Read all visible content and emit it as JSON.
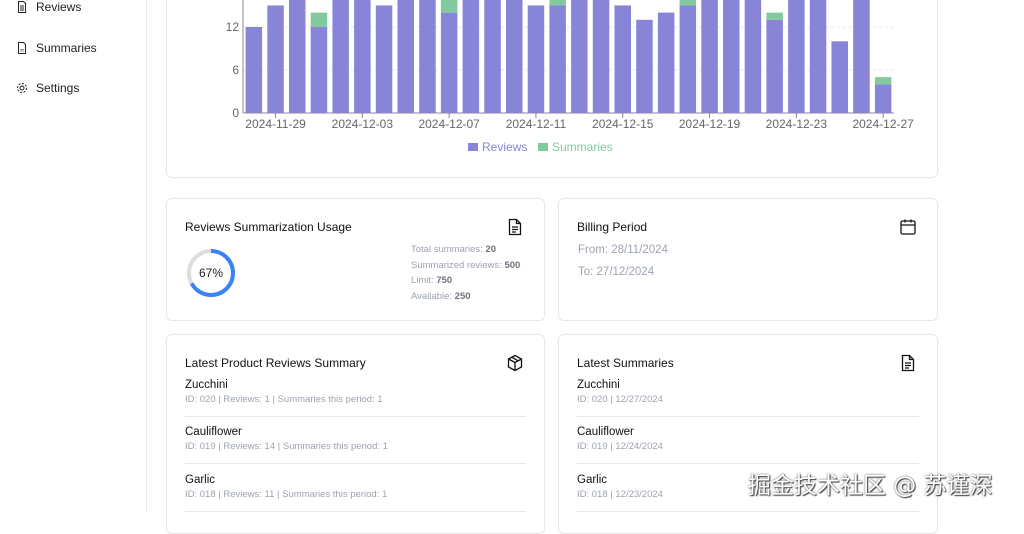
{
  "sidebar": {
    "items": [
      {
        "label": "Reviews",
        "icon": "file-text-icon"
      },
      {
        "label": "Summaries",
        "icon": "file-icon"
      },
      {
        "label": "Settings",
        "icon": "gear-icon"
      }
    ]
  },
  "chart_data": {
    "type": "bar",
    "stacked": true,
    "x": [
      "2024-11-28",
      "2024-11-29",
      "2024-11-30",
      "2024-12-01",
      "2024-12-02",
      "2024-12-03",
      "2024-12-04",
      "2024-12-05",
      "2024-12-06",
      "2024-12-07",
      "2024-12-08",
      "2024-12-09",
      "2024-12-10",
      "2024-12-11",
      "2024-12-12",
      "2024-12-13",
      "2024-12-14",
      "2024-12-15",
      "2024-12-16",
      "2024-12-17",
      "2024-12-18",
      "2024-12-19",
      "2024-12-20",
      "2024-12-21",
      "2024-12-22",
      "2024-12-23",
      "2024-12-24",
      "2024-12-25",
      "2024-12-26",
      "2024-12-27"
    ],
    "tick_labels": [
      "2024-11-29",
      "2024-12-03",
      "2024-12-07",
      "2024-12-11",
      "2024-12-15",
      "2024-12-19",
      "2024-12-23",
      "2024-12-27"
    ],
    "y_ticks": [
      "0",
      "6",
      "12"
    ],
    "series": [
      {
        "name": "Reviews",
        "color": "#8884d8",
        "values": [
          12,
          15,
          17,
          12,
          17,
          17,
          15,
          17,
          17,
          14,
          17,
          17,
          17,
          15,
          15,
          17,
          17,
          15,
          13,
          14,
          15,
          17,
          17,
          17,
          13,
          17,
          17,
          10,
          17,
          4
        ]
      },
      {
        "name": "Summaries",
        "color": "#82ca9d",
        "values": [
          0,
          0,
          0,
          2,
          0,
          0,
          0,
          0,
          0,
          3,
          0,
          0,
          0,
          0,
          1,
          0,
          0,
          0,
          0,
          0,
          2,
          0,
          0,
          0,
          1,
          0,
          0,
          0,
          0,
          1
        ]
      }
    ],
    "ylim": [
      0,
      18
    ],
    "grid": true,
    "legend": "bottom"
  },
  "usage": {
    "title": "Reviews Summarization Usage",
    "percent_label": "67%",
    "percent": 67,
    "total_label": "Total summaries:",
    "total": "20",
    "summarized_label": "Summarized reviews:",
    "summarized": "500",
    "limit_label": "Limit:",
    "limit": "750",
    "available_label": "Available:",
    "available": "250"
  },
  "billing": {
    "title": "Billing Period",
    "from": "From: 28/11/2024",
    "to": "To: 27/12/2024"
  },
  "products": {
    "title": "Latest Product Reviews Summary",
    "items": [
      {
        "name": "Zucchini",
        "meta": "ID: 020 | Reviews: 1 | Summaries this period: 1"
      },
      {
        "name": "Cauliflower",
        "meta": "ID: 019 | Reviews: 14 | Summaries this period: 1"
      },
      {
        "name": "Garlic",
        "meta": "ID: 018 | Reviews: 11 | Summaries this period: 1"
      }
    ]
  },
  "summaries": {
    "title": "Latest Summaries",
    "items": [
      {
        "name": "Zucchini",
        "meta": "ID: 020 | 12/27/2024"
      },
      {
        "name": "Cauliflower",
        "meta": "ID: 019 | 12/24/2024"
      },
      {
        "name": "Garlic",
        "meta": "ID: 018 | 12/23/2024"
      }
    ]
  },
  "watermark": "掘金技术社区 @ 苏谨深"
}
